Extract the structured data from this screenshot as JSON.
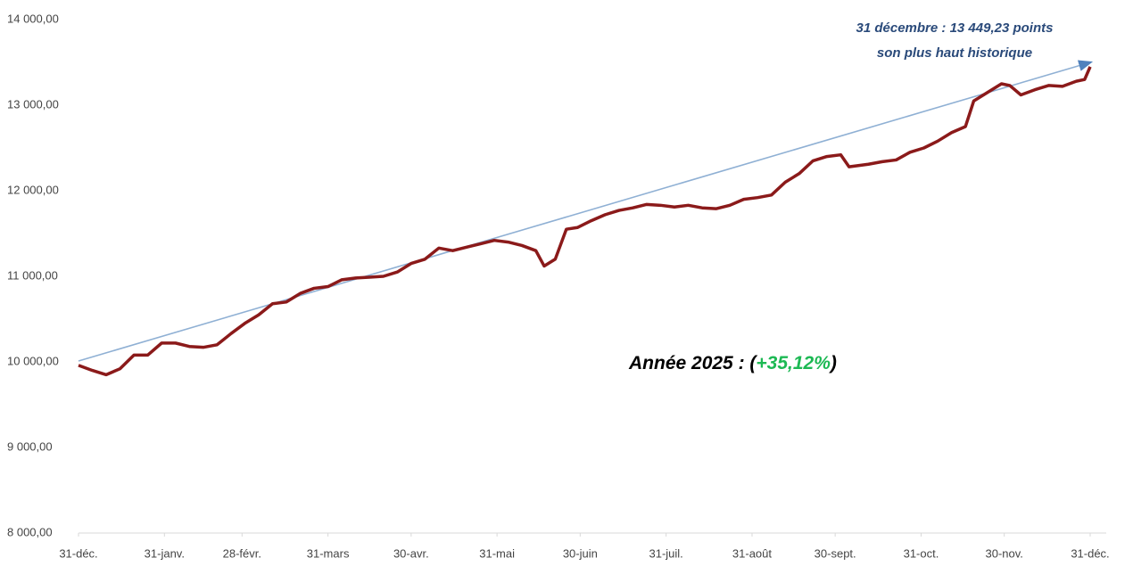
{
  "chart_data": {
    "type": "line",
    "xlim": [
      0,
      365
    ],
    "xticks": [
      {
        "value": 0,
        "label": "31-déc."
      },
      {
        "value": 31,
        "label": "31-janv."
      },
      {
        "value": 59,
        "label": "28-févr."
      },
      {
        "value": 90,
        "label": "31-mars"
      },
      {
        "value": 120,
        "label": "30-avr."
      },
      {
        "value": 151,
        "label": "31-mai"
      },
      {
        "value": 181,
        "label": "30-juin"
      },
      {
        "value": 212,
        "label": "31-juil."
      },
      {
        "value": 243,
        "label": "31-août"
      },
      {
        "value": 273,
        "label": "30-sept."
      },
      {
        "value": 304,
        "label": "31-oct."
      },
      {
        "value": 334,
        "label": "30-nov."
      },
      {
        "value": 365,
        "label": "31-déc."
      }
    ],
    "ylim": [
      8000,
      14000
    ],
    "yticks": [
      {
        "value": 8000,
        "label": "8 000,00"
      },
      {
        "value": 9000,
        "label": "9 000,00"
      },
      {
        "value": 10000,
        "label": "10 000,00"
      },
      {
        "value": 11000,
        "label": "11 000,00"
      },
      {
        "value": 12000,
        "label": "12 000,00"
      },
      {
        "value": 13000,
        "label": "13 000,00"
      },
      {
        "value": 14000,
        "label": "14 000,00"
      }
    ],
    "grid": false,
    "x": [
      0,
      5,
      10,
      15,
      20,
      25,
      30,
      35,
      40,
      45,
      50,
      55,
      60,
      65,
      70,
      75,
      80,
      85,
      90,
      95,
      100,
      105,
      110,
      115,
      120,
      125,
      130,
      135,
      140,
      145,
      150,
      155,
      160,
      165,
      168,
      172,
      176,
      180,
      185,
      190,
      195,
      200,
      205,
      210,
      215,
      220,
      225,
      230,
      235,
      240,
      245,
      250,
      255,
      260,
      265,
      270,
      275,
      278,
      285,
      290,
      295,
      300,
      305,
      310,
      315,
      320,
      323,
      328,
      333,
      336,
      340,
      345,
      350,
      355,
      360,
      363,
      365
    ],
    "series": [
      {
        "color": "#8b1a1a",
        "values": [
          9960,
          9900,
          9850,
          9920,
          10080,
          10080,
          10220,
          10220,
          10180,
          10170,
          10200,
          10330,
          10450,
          10550,
          10680,
          10700,
          10800,
          10860,
          10880,
          10960,
          10980,
          10990,
          11000,
          11050,
          11150,
          11200,
          11330,
          11300,
          11340,
          11380,
          11420,
          11400,
          11360,
          11300,
          11120,
          11200,
          11550,
          11570,
          11650,
          11720,
          11770,
          11800,
          11840,
          11830,
          11810,
          11830,
          11800,
          11790,
          11830,
          11900,
          11920,
          11950,
          12100,
          12200,
          12350,
          12400,
          12420,
          12280,
          12310,
          12340,
          12360,
          12450,
          12500,
          12580,
          12680,
          12750,
          13050,
          13150,
          13250,
          13230,
          13120,
          13180,
          13230,
          13220,
          13280,
          13300,
          13449.23
        ]
      }
    ],
    "annotations": [
      "31 décembre : 13 449,23 points",
      "son plus haut historique"
    ],
    "subtitle": {
      "prefix": "Année 2025 : (",
      "highlight": "+35,12%",
      "suffix": ")",
      "highlight_color": "#1db954"
    }
  }
}
